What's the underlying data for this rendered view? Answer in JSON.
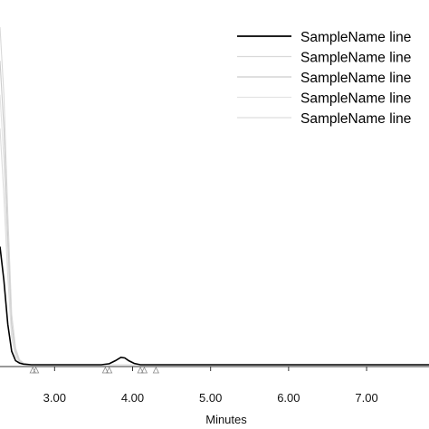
{
  "chart_data": {
    "type": "line",
    "xlabel": "Minutes",
    "xlim": [
      2.3,
      7.8
    ],
    "ylim": [
      0,
      1.0
    ],
    "xticks": [
      {
        "value": 3.0,
        "label": "3.00"
      },
      {
        "value": 4.0,
        "label": "4.00"
      },
      {
        "value": 5.0,
        "label": "5.00"
      },
      {
        "value": 6.0,
        "label": "6.00"
      },
      {
        "value": 7.0,
        "label": "7.00"
      }
    ],
    "legend": {
      "position": "top-right",
      "entries": [
        {
          "label": "SampleName line",
          "color": "#000000"
        },
        {
          "label": "SampleName line",
          "color": "#d9d9d9"
        },
        {
          "label": "SampleName line",
          "color": "#cccccc"
        },
        {
          "label": "SampleName line",
          "color": "#e3e3e3"
        },
        {
          "label": "SampleName line",
          "color": "#dddddd"
        }
      ]
    },
    "series": [
      {
        "color": "#000000",
        "x": [
          2.3,
          2.35,
          2.4,
          2.45,
          2.5,
          2.55,
          2.6,
          2.7,
          3.6,
          3.7,
          3.78,
          3.85,
          3.9,
          3.95,
          4.02,
          4.1,
          7.8
        ],
        "y": [
          0.35,
          0.25,
          0.12,
          0.04,
          0.012,
          0.005,
          0.002,
          0.0,
          0.0,
          0.003,
          0.012,
          0.022,
          0.02,
          0.012,
          0.004,
          0.0,
          0.0
        ]
      },
      {
        "color": "#d9d9d9",
        "x": [
          2.3,
          2.35,
          2.4,
          2.45,
          2.5,
          2.55,
          2.6,
          2.7,
          7.8
        ],
        "y": [
          1.0,
          0.8,
          0.45,
          0.15,
          0.05,
          0.015,
          0.005,
          0.0,
          0.0
        ]
      },
      {
        "color": "#cccccc",
        "x": [
          2.3,
          2.35,
          2.4,
          2.45,
          2.5,
          2.55,
          2.6,
          2.7,
          7.8
        ],
        "y": [
          0.9,
          0.7,
          0.38,
          0.12,
          0.04,
          0.012,
          0.004,
          0.0,
          0.0
        ]
      },
      {
        "color": "#e3e3e3",
        "x": [
          2.3,
          2.35,
          2.4,
          2.45,
          2.5,
          2.55,
          2.6,
          2.7,
          7.8
        ],
        "y": [
          0.8,
          0.6,
          0.32,
          0.1,
          0.03,
          0.01,
          0.003,
          0.0,
          0.0
        ]
      },
      {
        "color": "#dddddd",
        "x": [
          2.3,
          2.35,
          2.4,
          2.45,
          2.5,
          2.55,
          2.6,
          2.7,
          7.8
        ],
        "y": [
          0.7,
          0.5,
          0.26,
          0.08,
          0.025,
          0.008,
          0.002,
          0.0,
          0.0
        ]
      }
    ],
    "peak_markers": {
      "shape": "triangle",
      "x": [
        2.72,
        2.76,
        3.65,
        3.7,
        4.1,
        4.15,
        4.3
      ]
    }
  }
}
